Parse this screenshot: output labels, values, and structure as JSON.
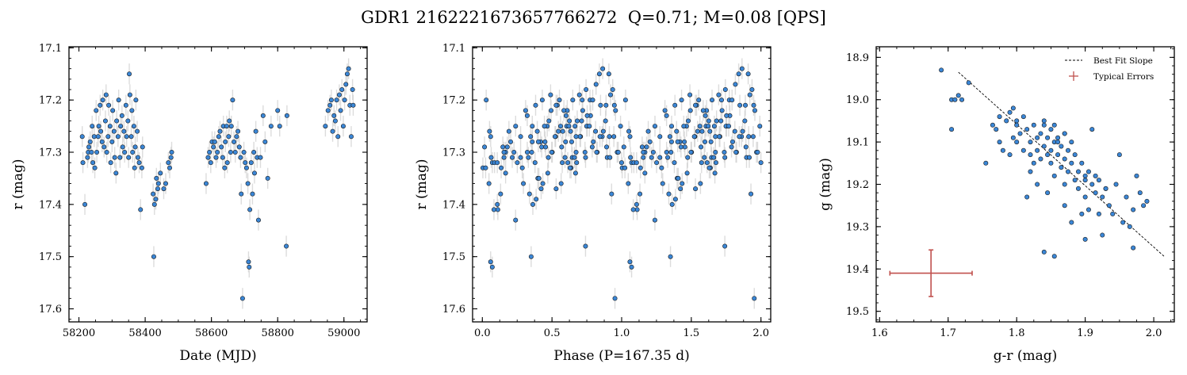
{
  "title": "GDR1 2162221673657766272  Q=0.71; M=0.08 [QPS]",
  "chart_data": [
    {
      "type": "scatter",
      "xlabel": "Date (MJD)",
      "ylabel": "r (mag)",
      "xlim": [
        58170,
        59070
      ],
      "ylim": [
        17.625,
        17.098
      ],
      "y_inverted": true,
      "xticks": [
        58200,
        58400,
        58600,
        58800,
        59000
      ],
      "yticks": [
        17.1,
        17.2,
        17.3,
        17.4,
        17.5,
        17.6
      ],
      "ytick_labels": [
        "17.1",
        "17.2",
        "17.3",
        "17.4",
        "17.5",
        "17.6"
      ],
      "marker_color": "#3a86d6",
      "errorbar_color": "#d0d0d0",
      "points": [
        [
          58210,
          17.27
        ],
        [
          58212,
          17.32
        ],
        [
          58218,
          17.4
        ],
        [
          58226,
          17.31
        ],
        [
          58228,
          17.3
        ],
        [
          58230,
          17.29
        ],
        [
          58234,
          17.28
        ],
        [
          58238,
          17.3
        ],
        [
          58240,
          17.25
        ],
        [
          58242,
          17.32
        ],
        [
          58246,
          17.27
        ],
        [
          58248,
          17.33
        ],
        [
          58252,
          17.22
        ],
        [
          58254,
          17.3
        ],
        [
          58258,
          17.27
        ],
        [
          58260,
          17.25
        ],
        [
          58264,
          17.21
        ],
        [
          58266,
          17.26
        ],
        [
          58270,
          17.28
        ],
        [
          58272,
          17.2
        ],
        [
          58276,
          17.29
        ],
        [
          58280,
          17.24
        ],
        [
          58282,
          17.19
        ],
        [
          58284,
          17.3
        ],
        [
          58288,
          17.27
        ],
        [
          58290,
          17.21
        ],
        [
          58294,
          17.25
        ],
        [
          58296,
          17.32
        ],
        [
          58300,
          17.28
        ],
        [
          58302,
          17.22
        ],
        [
          58306,
          17.26
        ],
        [
          58308,
          17.31
        ],
        [
          58312,
          17.34
        ],
        [
          58314,
          17.24
        ],
        [
          58318,
          17.27
        ],
        [
          58320,
          17.2
        ],
        [
          58324,
          17.31
        ],
        [
          58326,
          17.25
        ],
        [
          58330,
          17.23
        ],
        [
          58332,
          17.29
        ],
        [
          58336,
          17.26
        ],
        [
          58338,
          17.3
        ],
        [
          58342,
          17.21
        ],
        [
          58344,
          17.27
        ],
        [
          58348,
          17.24
        ],
        [
          58350,
          17.31
        ],
        [
          58352,
          17.15
        ],
        [
          58354,
          17.19
        ],
        [
          58358,
          17.27
        ],
        [
          58360,
          17.22
        ],
        [
          58362,
          17.3
        ],
        [
          58366,
          17.25
        ],
        [
          58368,
          17.33
        ],
        [
          58370,
          17.29
        ],
        [
          58372,
          17.2
        ],
        [
          58376,
          17.26
        ],
        [
          58378,
          17.31
        ],
        [
          58382,
          17.32
        ],
        [
          58386,
          17.41
        ],
        [
          58390,
          17.33
        ],
        [
          58392,
          17.29
        ],
        [
          58424,
          17.38
        ],
        [
          58426,
          17.5
        ],
        [
          58428,
          17.4
        ],
        [
          58432,
          17.39
        ],
        [
          58434,
          17.35
        ],
        [
          58438,
          17.37
        ],
        [
          58440,
          17.36
        ],
        [
          58446,
          17.34
        ],
        [
          58456,
          17.37
        ],
        [
          58462,
          17.36
        ],
        [
          58470,
          17.32
        ],
        [
          58474,
          17.33
        ],
        [
          58478,
          17.31
        ],
        [
          58480,
          17.3
        ],
        [
          58584,
          17.36
        ],
        [
          58590,
          17.31
        ],
        [
          58594,
          17.3
        ],
        [
          58598,
          17.32
        ],
        [
          58602,
          17.28
        ],
        [
          58606,
          17.29
        ],
        [
          58610,
          17.28
        ],
        [
          58614,
          17.31
        ],
        [
          58618,
          17.3
        ],
        [
          58622,
          17.27
        ],
        [
          58626,
          17.26
        ],
        [
          58630,
          17.29
        ],
        [
          58634,
          17.31
        ],
        [
          58636,
          17.25
        ],
        [
          58640,
          17.33
        ],
        [
          58642,
          17.28
        ],
        [
          58646,
          17.25
        ],
        [
          58648,
          17.32
        ],
        [
          58652,
          17.27
        ],
        [
          58654,
          17.24
        ],
        [
          58658,
          17.3
        ],
        [
          58660,
          17.25
        ],
        [
          58664,
          17.2
        ],
        [
          58668,
          17.28
        ],
        [
          58672,
          17.3
        ],
        [
          58676,
          17.27
        ],
        [
          58680,
          17.26
        ],
        [
          58684,
          17.29
        ],
        [
          58688,
          17.31
        ],
        [
          58690,
          17.38
        ],
        [
          58694,
          17.58
        ],
        [
          58698,
          17.3
        ],
        [
          58702,
          17.32
        ],
        [
          58706,
          17.33
        ],
        [
          58710,
          17.36
        ],
        [
          58712,
          17.51
        ],
        [
          58714,
          17.52
        ],
        [
          58716,
          17.41
        ],
        [
          58720,
          17.32
        ],
        [
          58724,
          17.38
        ],
        [
          58728,
          17.3
        ],
        [
          58730,
          17.34
        ],
        [
          58734,
          17.26
        ],
        [
          58738,
          17.31
        ],
        [
          58742,
          17.43
        ],
        [
          58748,
          17.31
        ],
        [
          58756,
          17.23
        ],
        [
          58762,
          17.28
        ],
        [
          58770,
          17.35
        ],
        [
          58780,
          17.25
        ],
        [
          58800,
          17.22
        ],
        [
          58806,
          17.25
        ],
        [
          58826,
          17.48
        ],
        [
          58828,
          17.23
        ],
        [
          58944,
          17.25
        ],
        [
          58952,
          17.22
        ],
        [
          58958,
          17.21
        ],
        [
          58962,
          17.2
        ],
        [
          58966,
          17.26
        ],
        [
          58970,
          17.23
        ],
        [
          58974,
          17.24
        ],
        [
          58978,
          17.2
        ],
        [
          58982,
          17.27
        ],
        [
          58986,
          17.19
        ],
        [
          58990,
          17.22
        ],
        [
          58994,
          17.18
        ],
        [
          58998,
          17.25
        ],
        [
          59002,
          17.2
        ],
        [
          59006,
          17.17
        ],
        [
          59010,
          17.15
        ],
        [
          59014,
          17.14
        ],
        [
          59018,
          17.21
        ],
        [
          59022,
          17.27
        ],
        [
          59026,
          17.18
        ],
        [
          59028,
          17.21
        ]
      ]
    },
    {
      "type": "scatter",
      "xlabel": "Phase (P=167.35 d)",
      "ylabel": "r (mag)",
      "xlim": [
        -0.07,
        2.07
      ],
      "ylim": [
        17.625,
        17.098
      ],
      "y_inverted": true,
      "xticks": [
        0.0,
        0.5,
        1.0,
        1.5,
        2.0
      ],
      "xtick_labels": [
        "0.0",
        "0.5",
        "1.0",
        "1.5",
        "2.0"
      ],
      "yticks": [
        17.1,
        17.2,
        17.3,
        17.4,
        17.5,
        17.6
      ],
      "ytick_labels": [
        "17.1",
        "17.2",
        "17.3",
        "17.4",
        "17.5",
        "17.6"
      ],
      "marker_color": "#3a86d6",
      "errorbar_color": "#d0d0d0",
      "period_days": 167.35,
      "epoch_mjd": 58200
    },
    {
      "type": "scatter",
      "xlabel": "g-r (mag)",
      "ylabel": "g (mag)",
      "xlim": [
        1.595,
        2.03
      ],
      "ylim": [
        19.525,
        18.875
      ],
      "y_inverted": true,
      "xticks": [
        1.6,
        1.7,
        1.8,
        1.9,
        2.0
      ],
      "xtick_labels": [
        "1.6",
        "1.7",
        "1.8",
        "1.9",
        "2.0"
      ],
      "yticks": [
        18.9,
        19.0,
        19.1,
        19.2,
        19.3,
        19.4,
        19.5
      ],
      "ytick_labels": [
        "18.9",
        "19.0",
        "19.1",
        "19.2",
        "19.3",
        "19.4",
        "19.5"
      ],
      "marker_color": "#3a86d6",
      "legend": {
        "position": "upper-right",
        "entries": [
          "Best Fit Slope",
          "Typical Errors"
        ]
      },
      "best_fit_line": {
        "x": [
          1.715,
          2.015
        ],
        "y": [
          18.935,
          19.37
        ],
        "color": "#000000",
        "style": "dashed"
      },
      "typical_error": {
        "x": 1.675,
        "y": 19.41,
        "xerr": 0.06,
        "yerr": 0.055,
        "color": "#c0504d"
      },
      "points": [
        [
          1.69,
          18.93
        ],
        [
          1.705,
          19.0
        ],
        [
          1.71,
          19.0
        ],
        [
          1.715,
          18.99
        ],
        [
          1.72,
          19.0
        ],
        [
          1.705,
          19.07
        ],
        [
          1.73,
          18.96
        ],
        [
          1.755,
          19.15
        ],
        [
          1.765,
          19.06
        ],
        [
          1.77,
          19.07
        ],
        [
          1.775,
          19.1
        ],
        [
          1.775,
          19.04
        ],
        [
          1.78,
          19.12
        ],
        [
          1.785,
          19.05
        ],
        [
          1.79,
          19.13
        ],
        [
          1.795,
          19.09
        ],
        [
          1.795,
          19.02
        ],
        [
          1.8,
          19.1
        ],
        [
          1.8,
          19.05
        ],
        [
          1.805,
          19.08
        ],
        [
          1.81,
          19.12
        ],
        [
          1.81,
          19.04
        ],
        [
          1.815,
          19.07
        ],
        [
          1.815,
          19.23
        ],
        [
          1.82,
          19.1
        ],
        [
          1.82,
          19.13
        ],
        [
          1.825,
          19.06
        ],
        [
          1.825,
          19.15
        ],
        [
          1.83,
          19.09
        ],
        [
          1.83,
          19.12
        ],
        [
          1.83,
          19.2
        ],
        [
          1.835,
          19.08
        ],
        [
          1.835,
          19.14
        ],
        [
          1.84,
          19.06
        ],
        [
          1.84,
          19.11
        ],
        [
          1.84,
          19.36
        ],
        [
          1.845,
          19.09
        ],
        [
          1.845,
          19.13
        ],
        [
          1.845,
          19.22
        ],
        [
          1.85,
          19.07
        ],
        [
          1.85,
          19.12
        ],
        [
          1.85,
          19.15
        ],
        [
          1.855,
          19.1
        ],
        [
          1.855,
          19.37
        ],
        [
          1.855,
          19.18
        ],
        [
          1.86,
          19.09
        ],
        [
          1.86,
          19.13
        ],
        [
          1.865,
          19.11
        ],
        [
          1.865,
          19.16
        ],
        [
          1.87,
          19.08
        ],
        [
          1.87,
          19.14
        ],
        [
          1.87,
          19.2
        ],
        [
          1.875,
          19.12
        ],
        [
          1.875,
          19.17
        ],
        [
          1.88,
          19.1
        ],
        [
          1.88,
          19.15
        ],
        [
          1.885,
          19.19
        ],
        [
          1.885,
          19.13
        ],
        [
          1.89,
          19.17
        ],
        [
          1.89,
          19.21
        ],
        [
          1.895,
          19.15
        ],
        [
          1.895,
          19.27
        ],
        [
          1.9,
          19.19
        ],
        [
          1.9,
          19.23
        ],
        [
          1.9,
          19.33
        ],
        [
          1.905,
          19.17
        ],
        [
          1.905,
          19.26
        ],
        [
          1.91,
          19.2
        ],
        [
          1.91,
          19.07
        ],
        [
          1.915,
          19.18
        ],
        [
          1.915,
          19.22
        ],
        [
          1.92,
          19.27
        ],
        [
          1.92,
          19.19
        ],
        [
          1.925,
          19.32
        ],
        [
          1.925,
          19.23
        ],
        [
          1.93,
          19.21
        ],
        [
          1.935,
          19.25
        ],
        [
          1.94,
          19.27
        ],
        [
          1.945,
          19.2
        ],
        [
          1.95,
          19.13
        ],
        [
          1.955,
          19.29
        ],
        [
          1.96,
          19.23
        ],
        [
          1.965,
          19.3
        ],
        [
          1.97,
          19.35
        ],
        [
          1.975,
          19.18
        ],
        [
          1.98,
          19.22
        ],
        [
          1.985,
          19.25
        ],
        [
          1.99,
          19.24
        ],
        [
          1.84,
          19.05
        ],
        [
          1.855,
          19.06
        ],
        [
          1.87,
          19.08
        ],
        [
          1.8,
          19.06
        ],
        [
          1.79,
          19.03
        ],
        [
          1.86,
          19.1
        ],
        [
          1.87,
          19.25
        ],
        [
          1.82,
          19.17
        ],
        [
          1.88,
          19.29
        ],
        [
          1.9,
          19.18
        ],
        [
          1.93,
          19.21
        ],
        [
          1.97,
          19.26
        ]
      ]
    }
  ]
}
